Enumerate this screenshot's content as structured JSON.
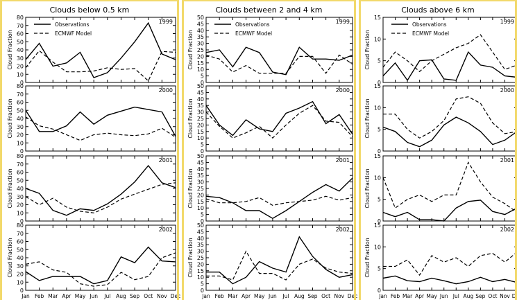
{
  "panels": [
    {
      "title": "Clouds below 0.5 km",
      "subplots": [
        {
          "year": "1999",
          "ylim": [
            0,
            80
          ],
          "yticks": [
            0,
            10,
            20,
            30,
            40,
            50,
            60,
            70,
            80
          ],
          "legend": true,
          "obs": [
            28,
            48,
            20,
            24,
            37,
            6,
            12,
            30,
            50,
            73,
            35,
            28
          ],
          "model": [
            18,
            39,
            25,
            13,
            13,
            14,
            18,
            16,
            17,
            2,
            38,
            37
          ]
        },
        {
          "year": "2000",
          "ylim": [
            0,
            80
          ],
          "yticks": [
            0,
            10,
            20,
            30,
            40,
            50,
            60,
            70,
            80
          ],
          "legend": false,
          "obs": [
            50,
            24,
            24,
            31,
            48,
            33,
            44,
            49,
            54,
            51,
            48,
            18
          ],
          "model": [
            42,
            31,
            27,
            20,
            13,
            20,
            22,
            20,
            19,
            21,
            28,
            17
          ]
        },
        {
          "year": "2001",
          "ylim": [
            0,
            80
          ],
          "yticks": [
            0,
            10,
            20,
            30,
            40,
            50,
            60,
            70,
            80
          ],
          "legend": false,
          "obs": [
            40,
            34,
            13,
            7,
            15,
            13,
            21,
            33,
            48,
            68,
            47,
            41
          ],
          "model": [
            30,
            20,
            28,
            17,
            12,
            10,
            17,
            27,
            33,
            39,
            45,
            47
          ]
        },
        {
          "year": "2002",
          "ylim": [
            0,
            80
          ],
          "yticks": [
            0,
            10,
            20,
            30,
            40,
            50,
            60,
            70,
            80
          ],
          "legend": false,
          "obs": [
            23,
            12,
            17,
            17,
            17,
            8,
            12,
            41,
            34,
            53,
            36,
            35
          ],
          "model": [
            32,
            35,
            25,
            22,
            8,
            5,
            7,
            22,
            13,
            17,
            40,
            46
          ]
        }
      ]
    },
    {
      "title": "Clouds between 2 and 4 km",
      "subplots": [
        {
          "year": "1999",
          "ylim": [
            0,
            50
          ],
          "yticks": [
            0,
            5,
            10,
            15,
            20,
            25,
            30,
            35,
            40,
            45,
            50
          ],
          "legend": true,
          "obs": [
            23,
            25,
            12,
            27,
            23,
            8,
            6,
            27,
            18,
            18,
            17,
            21
          ],
          "model": [
            21,
            18,
            8,
            13,
            7,
            7,
            7,
            20,
            20,
            7,
            21,
            14
          ]
        },
        {
          "year": "2000",
          "ylim": [
            0,
            50
          ],
          "yticks": [
            0,
            5,
            10,
            15,
            20,
            25,
            30,
            35,
            40,
            45,
            50
          ],
          "legend": false,
          "obs": [
            35,
            20,
            12,
            24,
            17,
            15,
            29,
            33,
            38,
            21,
            28,
            13
          ],
          "model": [
            30,
            19,
            10,
            14,
            19,
            10,
            20,
            29,
            35,
            23,
            22,
            11
          ]
        },
        {
          "year": "2001",
          "ylim": [
            0,
            50
          ],
          "yticks": [
            0,
            5,
            10,
            15,
            20,
            25,
            30,
            35,
            40,
            45,
            50
          ],
          "legend": false,
          "obs": [
            19,
            18,
            14,
            8,
            8,
            2,
            8,
            15,
            22,
            28,
            23,
            33
          ],
          "model": [
            17,
            14,
            14,
            15,
            18,
            12,
            14,
            15,
            16,
            19,
            16,
            18
          ]
        },
        {
          "year": "2002",
          "ylim": [
            0,
            50
          ],
          "yticks": [
            0,
            5,
            10,
            15,
            20,
            25,
            30,
            35,
            40,
            45,
            50
          ],
          "legend": false,
          "obs": [
            14,
            14,
            5,
            10,
            22,
            17,
            14,
            41,
            26,
            16,
            10,
            12
          ],
          "model": [
            11,
            11,
            8,
            30,
            13,
            13,
            8,
            20,
            24,
            17,
            14,
            13
          ]
        }
      ]
    },
    {
      "title": "Clouds above 6 km",
      "subplots": [
        {
          "year": "1999",
          "ylim": [
            0,
            15
          ],
          "yticks": [
            0,
            5,
            10,
            15
          ],
          "legend": true,
          "obs": [
            1.5,
            4.5,
            0.5,
            5,
            5.2,
            0.8,
            0.5,
            7,
            4,
            3.5,
            1.5,
            1.2
          ],
          "model": [
            3.5,
            7,
            5,
            2.5,
            5,
            6.5,
            8,
            9,
            11,
            7,
            3,
            4
          ]
        },
        {
          "year": "2000",
          "ylim": [
            0,
            15
          ],
          "yticks": [
            0,
            5,
            10,
            15
          ],
          "legend": false,
          "obs": [
            5.5,
            4.5,
            2,
            1,
            2.5,
            6,
            7.8,
            6.5,
            4.5,
            1.5,
            2.5,
            4.5
          ],
          "model": [
            8.5,
            8.5,
            5,
            3,
            4.5,
            7,
            12,
            12.5,
            11,
            6.5,
            4,
            4.5
          ]
        },
        {
          "year": "2001",
          "ylim": [
            0,
            15
          ],
          "yticks": [
            0,
            5,
            10,
            15
          ],
          "legend": false,
          "obs": [
            2,
            1,
            2,
            0.3,
            0.3,
            0,
            3,
            4.5,
            4.8,
            2.2,
            1.5,
            3
          ],
          "model": [
            10,
            3,
            5,
            6,
            4.5,
            6,
            6,
            13.5,
            9,
            5.5,
            4,
            2
          ]
        },
        {
          "year": "2002",
          "ylim": [
            0,
            15
          ],
          "yticks": [
            0,
            5,
            10,
            15
          ],
          "legend": false,
          "obs": [
            2.8,
            3.3,
            2.2,
            2,
            2.8,
            2.2,
            1.5,
            2,
            3,
            2,
            2.5,
            1.8
          ],
          "model": [
            5.5,
            5.5,
            7,
            3.5,
            8,
            6.5,
            7.5,
            5.5,
            8,
            8.5,
            6.5,
            8.8
          ]
        }
      ]
    }
  ],
  "months": [
    "Jan",
    "Feb",
    "Mar",
    "Apr",
    "May",
    "Jun",
    "Jul",
    "Aug",
    "Sep",
    "Oct",
    "Nov",
    "Dec"
  ],
  "ylabel": "Cloud Fraction",
  "legend": {
    "obs": "Observations",
    "model": "ECMWF Model"
  },
  "chart_data": [
    {
      "type": "line",
      "title": "Clouds below 0.5 km",
      "x": [
        "Jan",
        "Feb",
        "Mar",
        "Apr",
        "May",
        "Jun",
        "Jul",
        "Aug",
        "Sep",
        "Oct",
        "Nov",
        "Dec"
      ],
      "ylabel": "Cloud Fraction"
    },
    {
      "type": "line",
      "title": "Clouds between 2 and 4 km",
      "x": [
        "Jan",
        "Feb",
        "Mar",
        "Apr",
        "May",
        "Jun",
        "Jul",
        "Aug",
        "Sep",
        "Oct",
        "Nov",
        "Dec"
      ],
      "ylabel": "Cloud Fraction"
    },
    {
      "type": "line",
      "title": "Clouds above 6 km",
      "x": [
        "Jan",
        "Feb",
        "Mar",
        "Apr",
        "May",
        "Jun",
        "Jul",
        "Aug",
        "Sep",
        "Oct",
        "Nov",
        "Dec"
      ],
      "ylabel": "Cloud Fraction"
    }
  ]
}
